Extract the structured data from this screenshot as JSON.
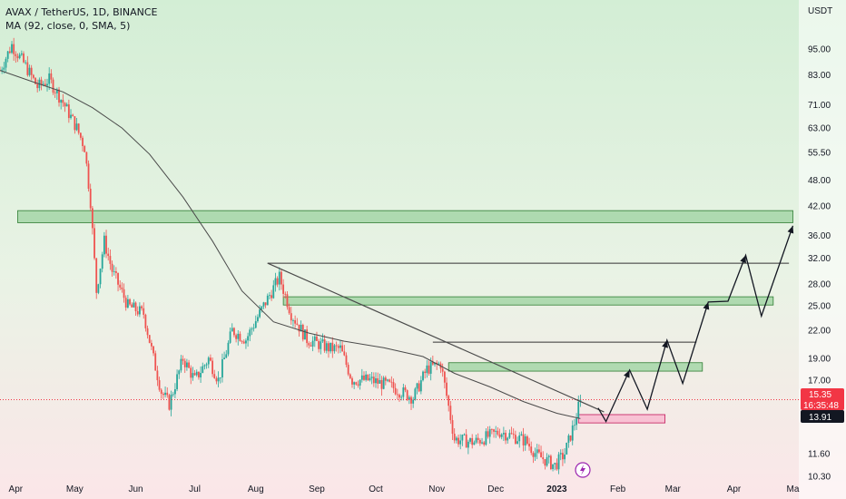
{
  "symbol_line": "AVAX / TetherUS, 1D, BINANCE",
  "indicator_line": "MA (92, close, 0, SMA, 5)",
  "currency": "USDT",
  "price_badge": {
    "price": "15.35",
    "countdown": "16:35:48"
  },
  "ma_badge": "13.91",
  "colors": {
    "up": "#26a69a",
    "down": "#ef5350",
    "ma_line": "#4a4a4a",
    "zone_green": "#a5d6a7",
    "zone_pink": "#f8bbd0",
    "bg_top": "#d3eed5",
    "bg_bottom": "#fbe6e8",
    "price_badge": "#f23645",
    "ma_badge": "#131722"
  },
  "chart_data": {
    "type": "candlestick",
    "x_ticks": [
      "Apr",
      "May",
      "Jun",
      "Jul",
      "Aug",
      "Sep",
      "Oct",
      "Nov",
      "Dec",
      "2023",
      "Feb",
      "Mar",
      "Apr",
      "Ma"
    ],
    "y_ticks": [
      95.0,
      83.0,
      71.0,
      63.0,
      55.5,
      48.0,
      42.0,
      36.0,
      32.0,
      28.0,
      25.0,
      22.0,
      19.0,
      17.0,
      15.35,
      13.91,
      11.6,
      10.3
    ],
    "y_tick_labels": [
      "95.00",
      "83.00",
      "71.00",
      "63.00",
      "55.50",
      "48.00",
      "42.00",
      "36.00",
      "32.00",
      "28.00",
      "25.00",
      "22.00",
      "19.00",
      "17.00",
      "15.35",
      "13.91",
      "11.60",
      "10.30"
    ],
    "y_scale": "log",
    "y_range": [
      9.6,
      118
    ],
    "x_range": [
      "2022-03-24",
      "2023-05-04"
    ],
    "last_price": 15.35,
    "ma_value": 13.91,
    "price_path": [
      [
        "2022-03-24",
        85
      ],
      [
        "2022-03-30",
        97
      ],
      [
        "2022-04-06",
        87
      ],
      [
        "2022-04-12",
        78
      ],
      [
        "2022-04-18",
        81
      ],
      [
        "2022-04-25",
        72
      ],
      [
        "2022-05-02",
        63
      ],
      [
        "2022-05-06",
        57
      ],
      [
        "2022-05-09",
        43
      ],
      [
        "2022-05-12",
        27
      ],
      [
        "2022-05-16",
        35
      ],
      [
        "2022-05-20",
        30
      ],
      [
        "2022-05-28",
        25
      ],
      [
        "2022-06-05",
        24
      ],
      [
        "2022-06-10",
        19
      ],
      [
        "2022-06-14",
        16
      ],
      [
        "2022-06-18",
        15
      ],
      [
        "2022-06-25",
        19
      ],
      [
        "2022-07-01",
        17
      ],
      [
        "2022-07-08",
        19
      ],
      [
        "2022-07-13",
        17
      ],
      [
        "2022-07-20",
        22
      ],
      [
        "2022-07-27",
        21
      ],
      [
        "2022-08-05",
        25
      ],
      [
        "2022-08-13",
        29
      ],
      [
        "2022-08-19",
        24
      ],
      [
        "2022-08-27",
        21
      ],
      [
        "2022-09-08",
        20
      ],
      [
        "2022-09-13",
        20
      ],
      [
        "2022-09-19",
        17
      ],
      [
        "2022-09-28",
        17
      ],
      [
        "2022-10-08",
        16.5
      ],
      [
        "2022-10-20",
        15.5
      ],
      [
        "2022-10-27",
        18
      ],
      [
        "2022-11-03",
        18.5
      ],
      [
        "2022-11-08",
        14
      ],
      [
        "2022-11-10",
        12.5
      ],
      [
        "2022-11-20",
        12.3
      ],
      [
        "2022-12-03",
        13
      ],
      [
        "2022-12-16",
        12.4
      ],
      [
        "2022-12-22",
        11.5
      ],
      [
        "2022-12-31",
        10.9
      ],
      [
        "2023-01-05",
        11.6
      ],
      [
        "2023-01-10",
        13.6
      ],
      [
        "2023-01-13",
        15.35
      ]
    ],
    "moving_average": [
      [
        "2022-03-24",
        85
      ],
      [
        "2022-04-10",
        80
      ],
      [
        "2022-04-25",
        76
      ],
      [
        "2022-05-10",
        70
      ],
      [
        "2022-05-25",
        63
      ],
      [
        "2022-06-08",
        55
      ],
      [
        "2022-06-25",
        44
      ],
      [
        "2022-07-10",
        35
      ],
      [
        "2022-07-25",
        27
      ],
      [
        "2022-08-10",
        23
      ],
      [
        "2022-08-28",
        21.7
      ],
      [
        "2022-09-15",
        20.8
      ],
      [
        "2022-10-05",
        20.1
      ],
      [
        "2022-10-25",
        19.2
      ],
      [
        "2022-11-10",
        17.6
      ],
      [
        "2022-11-28",
        16.4
      ],
      [
        "2022-12-15",
        15.2
      ],
      [
        "2023-01-01",
        14.3
      ],
      [
        "2023-01-13",
        13.91
      ]
    ],
    "zones": [
      {
        "color": "green",
        "from": "2022-04-02",
        "to": "2023-05-01",
        "low": 38.5,
        "high": 41.0
      },
      {
        "color": "green",
        "from": "2022-08-15",
        "to": "2023-04-21",
        "low": 25.1,
        "high": 26.2
      },
      {
        "color": "green",
        "from": "2022-11-07",
        "to": "2023-03-16",
        "low": 17.8,
        "high": 18.6
      },
      {
        "color": "pink",
        "from": "2023-01-12",
        "to": "2023-02-25",
        "low": 13.6,
        "high": 14.2
      }
    ],
    "horizontal_lines": [
      {
        "from": "2022-08-07",
        "to": "2023-04-29",
        "price": 31.2
      },
      {
        "from": "2022-10-30",
        "to": "2023-03-13",
        "price": 20.7
      }
    ],
    "trendline": [
      [
        "2022-08-07",
        31.2
      ],
      [
        "2023-01-25",
        14.4
      ]
    ],
    "projection": [
      [
        "2023-01-22",
        14.7
      ],
      [
        "2023-01-26",
        13.7
      ],
      [
        "2023-02-07",
        17.9
      ],
      [
        "2023-02-16",
        14.6
      ],
      [
        "2023-02-26",
        20.9
      ],
      [
        "2023-03-06",
        16.7
      ],
      [
        "2023-03-19",
        25.5
      ],
      [
        "2023-03-29",
        25.6
      ],
      [
        "2023-04-07",
        32.5
      ],
      [
        "2023-04-15",
        23.7
      ],
      [
        "2023-05-01",
        37.9
      ]
    ]
  }
}
